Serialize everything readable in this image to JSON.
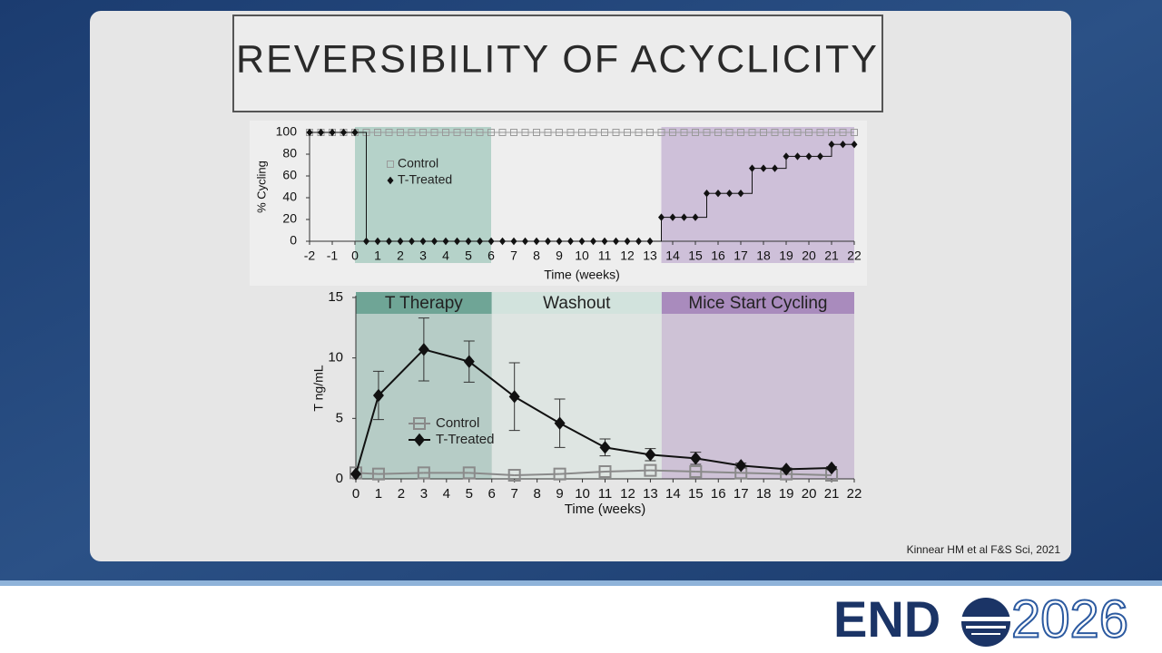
{
  "slide": {
    "title": "REVERSIBILITY OF ACYCLICITY",
    "citation": "Kinnear HM et al F&S Sci, 2021",
    "logo": {
      "left": "END",
      "right": "2026"
    }
  },
  "chart_data": [
    {
      "type": "line",
      "line_style": "step",
      "y_label": "% Cycling",
      "x_label": "Time (weeks)",
      "x": [
        -2,
        -1.5,
        -1,
        -0.5,
        0,
        0.5,
        1,
        1.5,
        2,
        2.5,
        3,
        3.5,
        4,
        4.5,
        5,
        5.5,
        6,
        6.5,
        7,
        7.5,
        8,
        8.5,
        9,
        9.5,
        10,
        10.5,
        11,
        11.5,
        12,
        12.5,
        13,
        13.5,
        14,
        14.5,
        15,
        15.5,
        16,
        16.5,
        17,
        17.5,
        18,
        18.5,
        19,
        19.5,
        20,
        20.5,
        21,
        21.5,
        22
      ],
      "series": [
        {
          "name": "Control",
          "color": "#9a9a9a",
          "marker": "square",
          "values": [
            100,
            100,
            100,
            100,
            100,
            100,
            100,
            100,
            100,
            100,
            100,
            100,
            100,
            100,
            100,
            100,
            100,
            100,
            100,
            100,
            100,
            100,
            100,
            100,
            100,
            100,
            100,
            100,
            100,
            100,
            100,
            100,
            100,
            100,
            100,
            100,
            100,
            100,
            100,
            100,
            100,
            100,
            100,
            100,
            100,
            100,
            100,
            100,
            100
          ]
        },
        {
          "name": "T-Treated",
          "color": "#111111",
          "marker": "diamond",
          "values": [
            100,
            100,
            100,
            100,
            100,
            0,
            0,
            0,
            0,
            0,
            0,
            0,
            0,
            0,
            0,
            0,
            0,
            0,
            0,
            0,
            0,
            0,
            0,
            0,
            0,
            0,
            0,
            0,
            0,
            0,
            0,
            22,
            22,
            22,
            22,
            44,
            44,
            44,
            44,
            67,
            67,
            67,
            78,
            78,
            78,
            78,
            89,
            89,
            89
          ]
        }
      ],
      "xlim": [
        -2,
        22
      ],
      "xticks": [
        -2,
        -1,
        0,
        1,
        2,
        3,
        4,
        5,
        6,
        7,
        8,
        9,
        10,
        11,
        12,
        13,
        14,
        15,
        16,
        17,
        18,
        19,
        20,
        21,
        22
      ],
      "ylim": [
        0,
        100
      ],
      "yticks": [
        0,
        20,
        40,
        60,
        80,
        100
      ],
      "regions": [
        {
          "start": 0,
          "end": 6,
          "color": "#8fbfb0"
        },
        {
          "start": 13.5,
          "end": 22,
          "color": "#b9a1cc"
        }
      ]
    },
    {
      "type": "line",
      "line_style": "straight",
      "y_label": "T ng/mL",
      "x_label": "Time (weeks)",
      "x": [
        0,
        1,
        3,
        5,
        7,
        9,
        11,
        13,
        15,
        17,
        19,
        21
      ],
      "series": [
        {
          "name": "Control",
          "color": "#8a8a8a",
          "marker": "square",
          "values": [
            0.5,
            0.4,
            0.5,
            0.5,
            0.3,
            0.4,
            0.6,
            0.7,
            0.6,
            0.5,
            0.4,
            0.3
          ]
        },
        {
          "name": "T-Treated",
          "color": "#111111",
          "marker": "diamond",
          "values": [
            0.4,
            6.9,
            10.7,
            9.7,
            6.8,
            4.6,
            2.6,
            2.0,
            1.7,
            1.1,
            0.8,
            0.9
          ],
          "errors": [
            0,
            2.0,
            2.6,
            1.7,
            2.8,
            2.0,
            0.7,
            0.5,
            0.5,
            0.2,
            0.1,
            0.1
          ]
        }
      ],
      "xlim": [
        0,
        22
      ],
      "xticks": [
        0,
        1,
        2,
        3,
        4,
        5,
        6,
        7,
        8,
        9,
        10,
        11,
        12,
        13,
        14,
        15,
        16,
        17,
        18,
        19,
        20,
        21,
        22
      ],
      "ylim": [
        0,
        15
      ],
      "yticks": [
        0,
        5,
        10,
        15
      ],
      "regions": [
        {
          "start": 0,
          "end": 6,
          "label": "T Therapy",
          "color": "#6fa596"
        },
        {
          "start": 6,
          "end": 13.5,
          "label": "Washout",
          "color": "#d2e3dd"
        },
        {
          "start": 13.5,
          "end": 22,
          "label": "Mice Start Cycling",
          "color": "#a98bbd"
        }
      ]
    }
  ]
}
